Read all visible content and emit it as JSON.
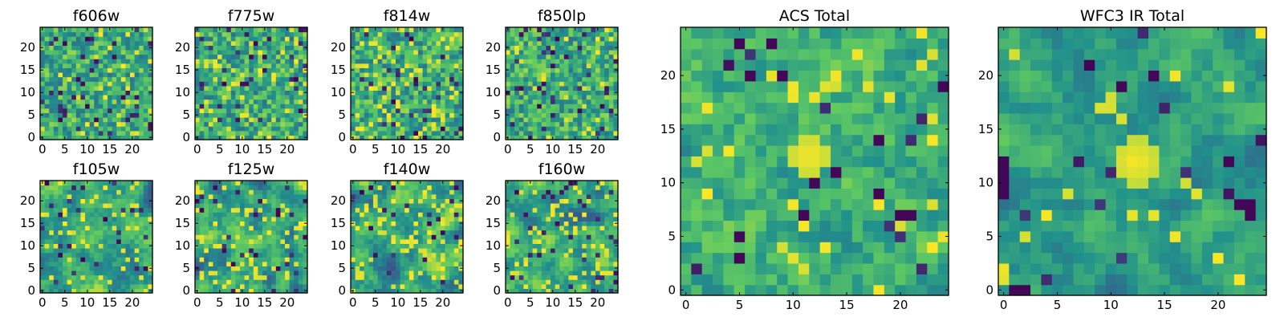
{
  "figure": {
    "colormap": "viridis",
    "colormap_stops": [
      "#440154",
      "#3b528b",
      "#21918c",
      "#5ec962",
      "#fde725"
    ],
    "axis_color": "#000000"
  },
  "chart_data": [
    {
      "id": "f606w",
      "type": "heatmap",
      "title": "f606w",
      "grid_size": 25,
      "xlim": [
        -0.5,
        24.5
      ],
      "ylim": [
        -0.5,
        24.5
      ],
      "xticks": [
        0,
        5,
        10,
        15,
        20
      ],
      "yticks": [
        0,
        5,
        10,
        15,
        20
      ],
      "texture": "pixel_noise",
      "dark_pixel_rate": 0.05,
      "bright_pixel_rate": 0.05,
      "seed": 11
    },
    {
      "id": "f775w",
      "type": "heatmap",
      "title": "f775w",
      "grid_size": 25,
      "xlim": [
        -0.5,
        24.5
      ],
      "ylim": [
        -0.5,
        24.5
      ],
      "xticks": [
        0,
        5,
        10,
        15,
        20
      ],
      "yticks": [
        0,
        5,
        10,
        15,
        20
      ],
      "texture": "pixel_noise",
      "dark_pixel_rate": 0.06,
      "bright_pixel_rate": 0.08,
      "seed": 23
    },
    {
      "id": "f814w",
      "type": "heatmap",
      "title": "f814w",
      "grid_size": 25,
      "xlim": [
        -0.5,
        24.5
      ],
      "ylim": [
        -0.5,
        24.5
      ],
      "xticks": [
        0,
        5,
        10,
        15,
        20
      ],
      "yticks": [
        0,
        5,
        10,
        15,
        20
      ],
      "texture": "pixel_noise",
      "dark_pixel_rate": 0.05,
      "bright_pixel_rate": 0.09,
      "seed": 37
    },
    {
      "id": "f850lp",
      "type": "heatmap",
      "title": "f850lp",
      "grid_size": 25,
      "xlim": [
        -0.5,
        24.5
      ],
      "ylim": [
        -0.5,
        24.5
      ],
      "xticks": [
        0,
        5,
        10,
        15,
        20
      ],
      "yticks": [
        0,
        5,
        10,
        15,
        20
      ],
      "texture": "pixel_noise",
      "dark_pixel_rate": 0.06,
      "bright_pixel_rate": 0.06,
      "seed": 41
    },
    {
      "id": "f105w",
      "type": "heatmap",
      "title": "f105w",
      "grid_size": 25,
      "xlim": [
        -0.5,
        24.5
      ],
      "ylim": [
        -0.5,
        24.5
      ],
      "xticks": [
        0,
        5,
        10,
        15,
        20
      ],
      "yticks": [
        0,
        5,
        10,
        15,
        20
      ],
      "texture": "smooth_blobs",
      "dark_pixel_rate": 0.04,
      "bright_pixel_rate": 0.1,
      "seed": 53
    },
    {
      "id": "f125w",
      "type": "heatmap",
      "title": "f125w",
      "grid_size": 25,
      "xlim": [
        -0.5,
        24.5
      ],
      "ylim": [
        -0.5,
        24.5
      ],
      "xticks": [
        0,
        5,
        10,
        15,
        20
      ],
      "yticks": [
        0,
        5,
        10,
        15,
        20
      ],
      "texture": "smooth_blobs",
      "dark_pixel_rate": 0.05,
      "bright_pixel_rate": 0.12,
      "seed": 67
    },
    {
      "id": "f140w",
      "type": "heatmap",
      "title": "f140w",
      "grid_size": 25,
      "xlim": [
        -0.5,
        24.5
      ],
      "ylim": [
        -0.5,
        24.5
      ],
      "xticks": [
        0,
        5,
        10,
        15,
        20
      ],
      "yticks": [
        0,
        5,
        10,
        15,
        20
      ],
      "texture": "smooth_blobs",
      "dark_pixel_rate": 0.05,
      "bright_pixel_rate": 0.12,
      "seed": 79
    },
    {
      "id": "f160w",
      "type": "heatmap",
      "title": "f160w",
      "grid_size": 25,
      "xlim": [
        -0.5,
        24.5
      ],
      "ylim": [
        -0.5,
        24.5
      ],
      "xticks": [
        0,
        5,
        10,
        15,
        20
      ],
      "yticks": [
        0,
        5,
        10,
        15,
        20
      ],
      "texture": "smooth_blobs",
      "dark_pixel_rate": 0.05,
      "bright_pixel_rate": 0.11,
      "seed": 97
    },
    {
      "id": "acs_total",
      "type": "heatmap",
      "title": "ACS Total",
      "grid_size": 25,
      "xlim": [
        -0.5,
        24.5
      ],
      "ylim": [
        -0.5,
        24.5
      ],
      "xticks": [
        0,
        5,
        10,
        15,
        20
      ],
      "yticks": [
        0,
        5,
        10,
        15,
        20
      ],
      "texture": "mixed",
      "dark_pixel_rate": 0.025,
      "bright_pixel_rate": 0.05,
      "seed": 131,
      "features": [
        {
          "type": "bright_patch",
          "x": 11.5,
          "y": 12.5,
          "radius": 2.1
        },
        {
          "type": "dark_pixel",
          "x": 5,
          "y": 23
        },
        {
          "type": "dark_pixel",
          "x": 8,
          "y": 23
        },
        {
          "type": "dark_pixel",
          "x": 24,
          "y": 19
        },
        {
          "type": "dark_pixel",
          "x": 18,
          "y": 14
        },
        {
          "type": "dark_pixel",
          "x": 14,
          "y": 11
        },
        {
          "type": "dark_pixel",
          "x": 11,
          "y": 7
        },
        {
          "type": "dark_pixel",
          "x": 20,
          "y": 7
        },
        {
          "type": "dark_pixel",
          "x": 21,
          "y": 7
        },
        {
          "type": "dark_pixel",
          "x": 5,
          "y": 3
        }
      ]
    },
    {
      "id": "wfc3_ir_total",
      "type": "heatmap",
      "title": "WFC3 IR Total",
      "grid_size": 25,
      "xlim": [
        -0.5,
        24.5
      ],
      "ylim": [
        -0.5,
        24.5
      ],
      "xticks": [
        0,
        5,
        10,
        15,
        20
      ],
      "yticks": [
        0,
        5,
        10,
        15,
        20
      ],
      "texture": "smooth_mixed",
      "dark_pixel_rate": 0.012,
      "bright_pixel_rate": 0.025,
      "seed": 157,
      "features": [
        {
          "type": "bright_patch",
          "x": 12.3,
          "y": 12.0,
          "radius": 2.3
        },
        {
          "type": "dark_pixel",
          "x": 0,
          "y": 12
        },
        {
          "type": "dark_pixel",
          "x": 0,
          "y": 11
        },
        {
          "type": "dark_pixel",
          "x": 0,
          "y": 10
        },
        {
          "type": "dark_pixel",
          "x": 0,
          "y": 9
        },
        {
          "type": "dark_pixel",
          "x": 11,
          "y": 19
        },
        {
          "type": "dark_pixel",
          "x": 21,
          "y": 12
        },
        {
          "type": "dark_pixel",
          "x": 22,
          "y": 8
        },
        {
          "type": "dark_pixel",
          "x": 23,
          "y": 8
        },
        {
          "type": "dark_pixel",
          "x": 23,
          "y": 7
        },
        {
          "type": "dark_pixel",
          "x": 1,
          "y": 0
        },
        {
          "type": "dark_pixel",
          "x": 2,
          "y": 0
        }
      ]
    }
  ]
}
